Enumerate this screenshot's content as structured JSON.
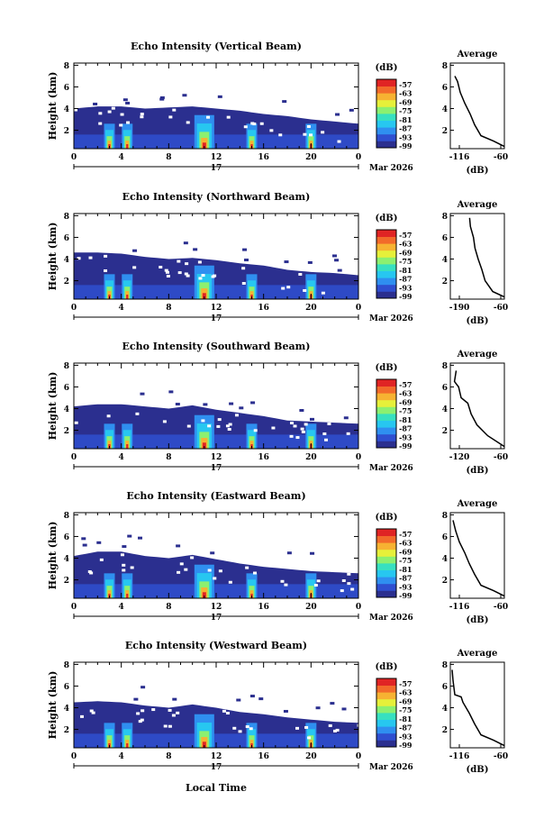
{
  "figure": {
    "xlabel_bottom": "Local Time",
    "date_label": "Mar 2026",
    "day_label": "17",
    "colorbar_unit": "(dB)",
    "avg_title": "Average",
    "avg_xlabel": "(dB)",
    "colors": {
      "background_echo": "#2b2f8f",
      "colormap": [
        "#2b2f8f",
        "#2f4fd0",
        "#2f8ff0",
        "#27c7f0",
        "#37e0c0",
        "#8cf070",
        "#e6f03a",
        "#f7b232",
        "#f26a2a",
        "#e02424"
      ]
    }
  },
  "chart_data": [
    {
      "type": "heatmap",
      "title": "Echo Intensity (Vertical Beam)",
      "ylabel": "Height (km)",
      "x_ticks": [
        "0",
        "4",
        "8",
        "12",
        "16",
        "20",
        "0"
      ],
      "y_ticks": [
        "2",
        "4",
        "6",
        "8"
      ],
      "xlim": [
        0,
        24
      ],
      "ylim": [
        0.3,
        8.2
      ],
      "colorbar_ticks": [
        "-57",
        "-63",
        "-69",
        "-75",
        "-81",
        "-87",
        "-93",
        "-99"
      ],
      "echo_top_km": [
        [
          0,
          4.0
        ],
        [
          2,
          4.2
        ],
        [
          4,
          4.2
        ],
        [
          6,
          4.0
        ],
        [
          8,
          4.1
        ],
        [
          10,
          4.2
        ],
        [
          12,
          4.0
        ],
        [
          14,
          3.8
        ],
        [
          16,
          3.5
        ],
        [
          18,
          3.3
        ],
        [
          20,
          3.0
        ],
        [
          22,
          2.8
        ],
        [
          24,
          2.6
        ]
      ],
      "average": {
        "x_ticks": [
          "-116",
          "-60"
        ],
        "xlim": [
          -120,
          -60
        ],
        "y_ticks": [
          "2",
          "4",
          "6",
          "8"
        ],
        "ylim": [
          0.3,
          8.2
        ],
        "profile": [
          [
            -60,
            0.5
          ],
          [
            -72,
            1.0
          ],
          [
            -86,
            1.5
          ],
          [
            -93,
            2.5
          ],
          [
            -98,
            3.5
          ],
          [
            -104,
            4.5
          ],
          [
            -109,
            5.5
          ],
          [
            -112,
            6.5
          ],
          [
            -115,
            7.0
          ]
        ]
      }
    },
    {
      "type": "heatmap",
      "title": "Echo Intensity (Northward Beam)",
      "ylabel": "Height (km)",
      "x_ticks": [
        "0",
        "4",
        "8",
        "12",
        "16",
        "20",
        "0"
      ],
      "y_ticks": [
        "2",
        "4",
        "6",
        "8"
      ],
      "xlim": [
        0,
        24
      ],
      "ylim": [
        0.3,
        8.2
      ],
      "colorbar_ticks": [
        "-57",
        "-63",
        "-69",
        "-75",
        "-81",
        "-87",
        "-93",
        "-99"
      ],
      "echo_top_km": [
        [
          0,
          4.6
        ],
        [
          2,
          4.6
        ],
        [
          4,
          4.5
        ],
        [
          6,
          4.2
        ],
        [
          8,
          4.0
        ],
        [
          10,
          4.1
        ],
        [
          12,
          3.9
        ],
        [
          14,
          3.6
        ],
        [
          16,
          3.4
        ],
        [
          18,
          3.0
        ],
        [
          20,
          2.8
        ],
        [
          22,
          2.7
        ],
        [
          24,
          2.5
        ]
      ],
      "average": {
        "x_ticks": [
          "-190",
          "-60"
        ],
        "xlim": [
          -200,
          -60
        ],
        "y_ticks": [
          "2",
          "4",
          "6",
          "8"
        ],
        "ylim": [
          0.3,
          8.2
        ],
        "profile": [
          [
            -60,
            0.5
          ],
          [
            -90,
            1.0
          ],
          [
            -110,
            2.0
          ],
          [
            -118,
            3.0
          ],
          [
            -128,
            4.0
          ],
          [
            -136,
            5.0
          ],
          [
            -140,
            6.0
          ],
          [
            -148,
            7.0
          ],
          [
            -150,
            7.8
          ]
        ]
      }
    },
    {
      "type": "heatmap",
      "title": "Echo Intensity (Southward Beam)",
      "ylabel": "Height (km)",
      "x_ticks": [
        "0",
        "4",
        "8",
        "12",
        "16",
        "20",
        "0"
      ],
      "y_ticks": [
        "2",
        "4",
        "6",
        "8"
      ],
      "xlim": [
        0,
        24
      ],
      "ylim": [
        0.3,
        8.2
      ],
      "colorbar_ticks": [
        "-57",
        "-63",
        "-69",
        "-75",
        "-81",
        "-87",
        "-93",
        "-99"
      ],
      "echo_top_km": [
        [
          0,
          4.2
        ],
        [
          2,
          4.4
        ],
        [
          4,
          4.4
        ],
        [
          6,
          4.2
        ],
        [
          8,
          4.0
        ],
        [
          10,
          4.3
        ],
        [
          12,
          3.9
        ],
        [
          14,
          3.6
        ],
        [
          16,
          3.3
        ],
        [
          18,
          2.9
        ],
        [
          20,
          2.8
        ],
        [
          22,
          2.7
        ],
        [
          24,
          2.6
        ]
      ],
      "average": {
        "x_ticks": [
          "-120",
          "-60"
        ],
        "xlim": [
          -125,
          -60
        ],
        "y_ticks": [
          "2",
          "4",
          "6",
          "8"
        ],
        "ylim": [
          0.3,
          8.2
        ],
        "profile": [
          [
            -60,
            0.5
          ],
          [
            -80,
            1.5
          ],
          [
            -93,
            2.5
          ],
          [
            -100,
            3.5
          ],
          [
            -104,
            4.5
          ],
          [
            -112,
            5.0
          ],
          [
            -115,
            6.0
          ],
          [
            -120,
            6.5
          ],
          [
            -118,
            7.5
          ]
        ]
      }
    },
    {
      "type": "heatmap",
      "title": "Echo Intensity (Eastward Beam)",
      "ylabel": "Height (km)",
      "x_ticks": [
        "0",
        "4",
        "8",
        "12",
        "16",
        "20",
        "0"
      ],
      "y_ticks": [
        "2",
        "4",
        "6",
        "8"
      ],
      "xlim": [
        0,
        24
      ],
      "ylim": [
        0.3,
        8.2
      ],
      "colorbar_ticks": [
        "-57",
        "-63",
        "-69",
        "-75",
        "-81",
        "-87",
        "-93",
        "-99"
      ],
      "echo_top_km": [
        [
          0,
          4.2
        ],
        [
          2,
          4.6
        ],
        [
          4,
          4.6
        ],
        [
          6,
          4.2
        ],
        [
          8,
          4.0
        ],
        [
          10,
          4.3
        ],
        [
          12,
          3.9
        ],
        [
          14,
          3.5
        ],
        [
          16,
          3.2
        ],
        [
          18,
          3.0
        ],
        [
          20,
          2.8
        ],
        [
          22,
          2.7
        ],
        [
          24,
          2.6
        ]
      ],
      "average": {
        "x_ticks": [
          "-116",
          "-60"
        ],
        "xlim": [
          -120,
          -60
        ],
        "y_ticks": [
          "2",
          "4",
          "6",
          "8"
        ],
        "ylim": [
          0.3,
          8.2
        ],
        "profile": [
          [
            -60,
            0.5
          ],
          [
            -72,
            1.0
          ],
          [
            -86,
            1.5
          ],
          [
            -93,
            2.5
          ],
          [
            -99,
            3.5
          ],
          [
            -104,
            4.5
          ],
          [
            -110,
            5.5
          ],
          [
            -114,
            6.5
          ],
          [
            -117,
            7.5
          ]
        ]
      }
    },
    {
      "type": "heatmap",
      "title": "Echo Intensity (Westward Beam)",
      "ylabel": "Height (km)",
      "x_ticks": [
        "0",
        "4",
        "8",
        "12",
        "16",
        "20",
        "0"
      ],
      "y_ticks": [
        "2",
        "4",
        "6",
        "8"
      ],
      "xlim": [
        0,
        24
      ],
      "ylim": [
        0.3,
        8.2
      ],
      "colorbar_ticks": [
        "-57",
        "-63",
        "-69",
        "-75",
        "-81",
        "-87",
        "-93",
        "-99"
      ],
      "echo_top_km": [
        [
          0,
          4.5
        ],
        [
          2,
          4.6
        ],
        [
          4,
          4.5
        ],
        [
          6,
          4.2
        ],
        [
          8,
          4.0
        ],
        [
          10,
          4.3
        ],
        [
          12,
          4.0
        ],
        [
          14,
          3.6
        ],
        [
          16,
          3.4
        ],
        [
          18,
          3.1
        ],
        [
          20,
          2.9
        ],
        [
          22,
          2.7
        ],
        [
          24,
          2.6
        ]
      ],
      "average": {
        "x_ticks": [
          "-116",
          "-60"
        ],
        "xlim": [
          -120,
          -60
        ],
        "y_ticks": [
          "2",
          "4",
          "6",
          "8"
        ],
        "ylim": [
          0.3,
          8.2
        ],
        "profile": [
          [
            -60,
            0.5
          ],
          [
            -72,
            1.0
          ],
          [
            -86,
            1.5
          ],
          [
            -93,
            2.5
          ],
          [
            -99,
            3.5
          ],
          [
            -106,
            4.5
          ],
          [
            -108,
            5.0
          ],
          [
            -115,
            5.2
          ],
          [
            -117,
            6.5
          ],
          [
            -118,
            7.5
          ]
        ]
      }
    }
  ]
}
